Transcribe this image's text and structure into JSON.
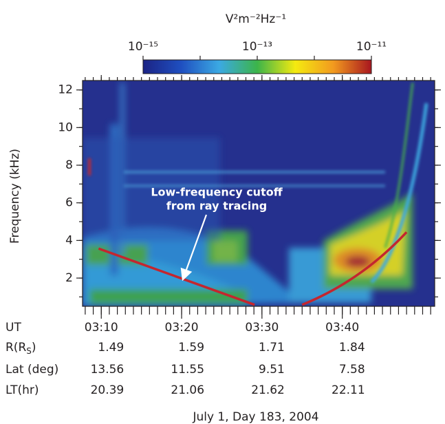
{
  "chart_data": {
    "type": "spectrogram",
    "colorbar": {
      "title": "V²m⁻²Hz⁻¹",
      "scale": "log",
      "clim": [
        1e-15,
        1e-11
      ],
      "ticks": [
        {
          "value": 1e-15,
          "label": "10⁻¹⁵"
        },
        {
          "value": 1e-13,
          "label": "10⁻¹³"
        },
        {
          "value": 1e-11,
          "label": "10⁻¹¹"
        }
      ],
      "minor_ticks": [
        1e-14,
        1e-12
      ],
      "colors": [
        "#1b2384",
        "#1f4fc0",
        "#3ba9e3",
        "#3cb44a",
        "#f4ea10",
        "#f29a1f",
        "#a8161f"
      ]
    },
    "ylabel": "Frequency (kHz)",
    "ylim": [
      0.5,
      12.5
    ],
    "yticks": [
      2,
      4,
      6,
      8,
      10,
      12
    ],
    "yminor_step": 1,
    "xlim": [
      "03:07:40",
      "03:51:30"
    ],
    "xticks": [
      "03:10",
      "03:20",
      "03:30",
      "03:40"
    ],
    "xminor_step": 1,
    "annotation": [
      "Low-frequency cutoff",
      "from ray tracing"
    ],
    "lines": [
      {
        "color": "#c4262e",
        "x": [
          "03:09:40",
          "03:29:05"
        ],
        "y": [
          3.57,
          0.58
        ]
      },
      {
        "color": "#c4262e",
        "x": [
          "03:35:00",
          "03:41:55",
          "03:48:00"
        ],
        "y": [
          0.58,
          2.18,
          4.44
        ]
      }
    ],
    "ephemeris": {
      "ut_label": "UT",
      "rows": [
        {
          "label": [
            "R(R",
            "S",
            ")"
          ],
          "values": [
            1.49,
            1.59,
            1.71,
            1.84
          ]
        },
        {
          "label": "Lat (deg)",
          "values": [
            13.56,
            11.55,
            9.51,
            7.58
          ]
        },
        {
          "label": "LT(hr)",
          "values": [
            20.39,
            21.06,
            21.62,
            22.11
          ]
        }
      ]
    },
    "footer": "July 1, Day 183, 2004"
  }
}
